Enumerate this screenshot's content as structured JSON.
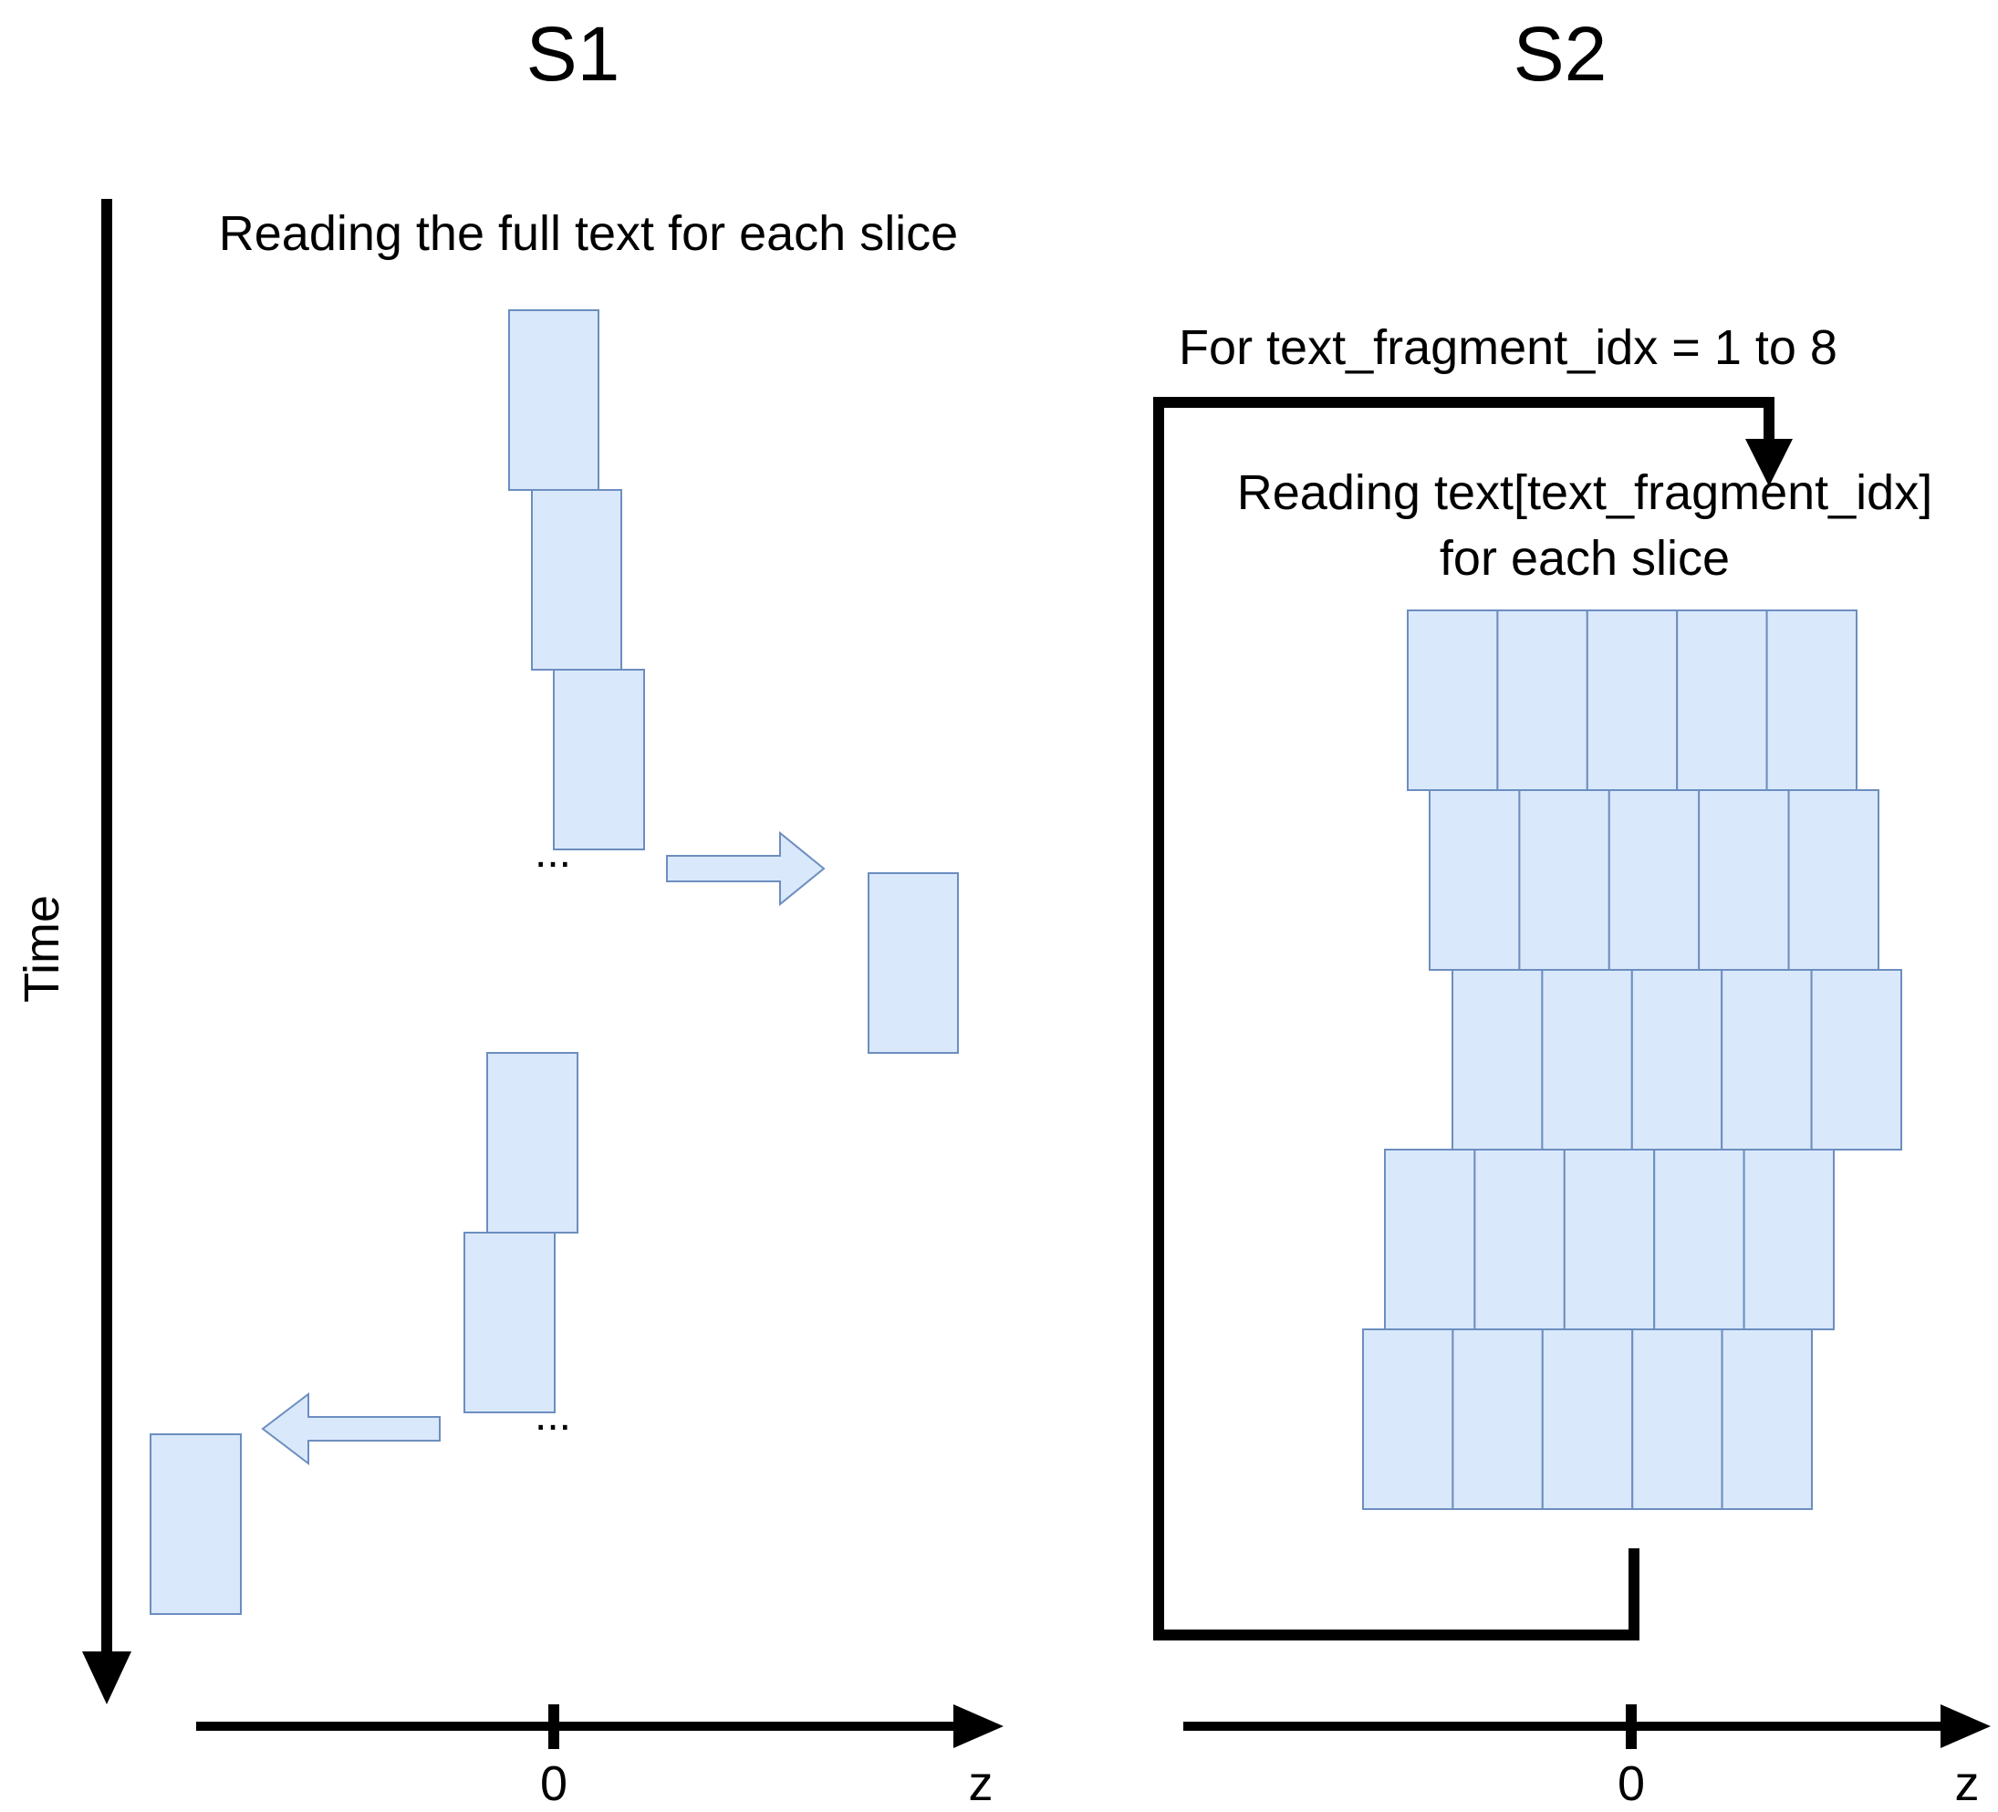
{
  "panels": {
    "s1": {
      "title": "S1",
      "caption": "Reading the full text for each slice",
      "ellipsis_top": "...",
      "ellipsis_bottom": "...",
      "z_axis_origin": "0",
      "z_axis_label": "z"
    },
    "s2": {
      "title": "S2",
      "loop_label": "For text_fragment_idx = 1 to 8",
      "caption_line1": "Reading text[text_fragment_idx]",
      "caption_line2": "for each slice",
      "z_axis_origin": "0",
      "z_axis_label": "z"
    }
  },
  "time_axis_label": "Time",
  "colors": {
    "block_fill": "#dae8fc",
    "block_stroke": "#6c8ebf",
    "line": "#000000"
  },
  "s2_grid": {
    "rows": 5,
    "columns": 5
  }
}
